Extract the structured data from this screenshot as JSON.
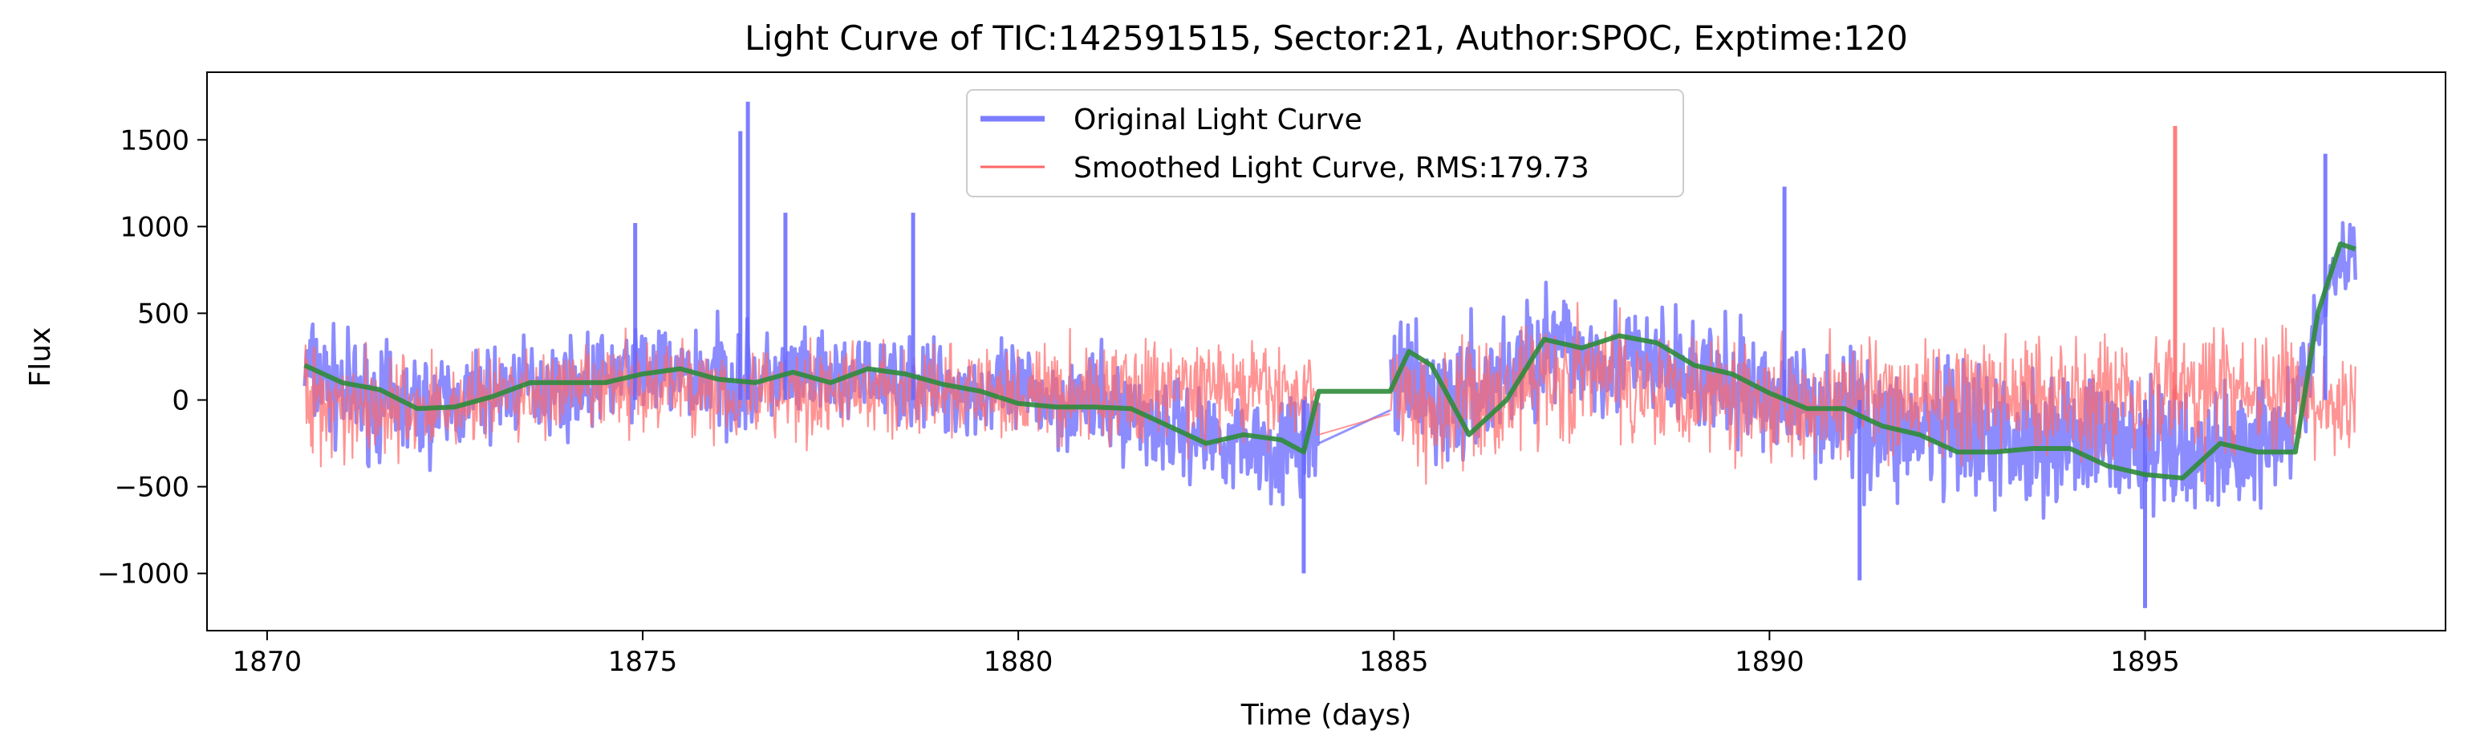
{
  "chart_data": {
    "type": "line",
    "title": "Light Curve of TIC:142591515, Sector:21, Author:SPOC, Exptime:120",
    "xlabel": "Time (days)",
    "ylabel": "Flux",
    "xlim": [
      1869.2,
      1899.0
    ],
    "ylim": [
      -1330,
      1890
    ],
    "xticks": [
      1870,
      1875,
      1880,
      1885,
      1890,
      1895
    ],
    "xtick_labels": [
      "1870",
      "1875",
      "1880",
      "1885",
      "1890",
      "1895"
    ],
    "yticks": [
      -1000,
      -500,
      0,
      500,
      1000,
      1500
    ],
    "ytick_labels": [
      "−1000",
      "−500",
      "0",
      "500",
      "1000",
      "1500"
    ],
    "grid": false,
    "legend_position": "top-center",
    "data_gap": [
      1884.0,
      1884.95
    ],
    "series": [
      {
        "name": "Original Light Curve",
        "color": "#6666ff",
        "envelope": {
          "x": [
            1870.5,
            1871.0,
            1871.5,
            1872.0,
            1872.5,
            1873.0,
            1873.5,
            1874.0,
            1874.5,
            1875.0,
            1875.5,
            1876.0,
            1876.5,
            1877.0,
            1877.5,
            1878.0,
            1878.5,
            1879.0,
            1879.5,
            1880.0,
            1880.5,
            1881.0,
            1881.5,
            1882.0,
            1882.5,
            1883.0,
            1883.5,
            1884.0,
            1885.0,
            1885.5,
            1886.0,
            1886.5,
            1887.0,
            1887.5,
            1888.0,
            1888.5,
            1889.0,
            1889.5,
            1890.0,
            1890.5,
            1891.0,
            1891.5,
            1892.0,
            1892.5,
            1893.0,
            1893.5,
            1894.0,
            1894.5,
            1895.0,
            1895.5,
            1896.0,
            1896.5,
            1897.0,
            1897.5,
            1897.8
          ],
          "upper": [
            600,
            450,
            380,
            350,
            330,
            380,
            420,
            400,
            450,
            500,
            480,
            550,
            450,
            450,
            420,
            430,
            400,
            400,
            350,
            380,
            350,
            340,
            300,
            200,
            150,
            120,
            100,
            200,
            500,
            450,
            520,
            600,
            780,
            700,
            650,
            620,
            560,
            480,
            450,
            420,
            380,
            350,
            320,
            300,
            280,
            300,
            250,
            250,
            220,
            200,
            180,
            200,
            350,
            1000,
            1150
          ],
          "lower": [
            -250,
            -350,
            -400,
            -450,
            -380,
            -300,
            -250,
            -250,
            -200,
            -150,
            -200,
            -280,
            -250,
            -200,
            -200,
            -180,
            -220,
            -250,
            -280,
            -300,
            -350,
            -350,
            -450,
            -500,
            -550,
            -600,
            -650,
            -600,
            -250,
            -500,
            -500,
            -300,
            -200,
            -150,
            -200,
            -250,
            -300,
            -350,
            -400,
            -450,
            -500,
            -650,
            -700,
            -750,
            -750,
            -700,
            -650,
            -700,
            -800,
            -800,
            -780,
            -650,
            -500,
            450,
            550
          ]
        }
      },
      {
        "name": "Smoothed Light Curve, RMS:179.73",
        "color": "#ff6666",
        "envelope": {
          "x": [
            1870.5,
            1871.0,
            1871.5,
            1872.0,
            1872.5,
            1873.0,
            1873.5,
            1874.0,
            1874.5,
            1875.0,
            1875.5,
            1876.0,
            1876.5,
            1877.0,
            1877.5,
            1878.0,
            1878.5,
            1879.0,
            1879.5,
            1880.0,
            1880.5,
            1881.0,
            1881.5,
            1882.0,
            1882.5,
            1883.0,
            1883.5,
            1884.0,
            1885.0,
            1885.5,
            1886.0,
            1886.5,
            1887.0,
            1887.5,
            1888.0,
            1888.5,
            1889.0,
            1889.5,
            1890.0,
            1890.5,
            1891.0,
            1891.5,
            1892.0,
            1892.5,
            1893.0,
            1893.5,
            1894.0,
            1894.5,
            1895.0,
            1895.5,
            1896.0,
            1896.5,
            1897.0,
            1897.5,
            1897.8
          ],
          "upper": [
            500,
            400,
            350,
            330,
            320,
            360,
            380,
            380,
            400,
            430,
            420,
            450,
            400,
            400,
            380,
            390,
            380,
            380,
            360,
            390,
            400,
            420,
            430,
            450,
            420,
            400,
            380,
            350,
            450,
            420,
            470,
            520,
            600,
            580,
            550,
            540,
            520,
            480,
            450,
            440,
            420,
            420,
            430,
            450,
            480,
            500,
            480,
            500,
            520,
            560,
            550,
            500,
            450,
            250,
            300
          ],
          "lower": [
            -400,
            -420,
            -420,
            -430,
            -380,
            -320,
            -300,
            -300,
            -270,
            -250,
            -270,
            -330,
            -320,
            -280,
            -280,
            -250,
            -280,
            -300,
            -320,
            -330,
            -340,
            -340,
            -350,
            -330,
            -300,
            -300,
            -300,
            -300,
            -300,
            -550,
            -550,
            -400,
            -350,
            -300,
            -320,
            -350,
            -380,
            -400,
            -420,
            -430,
            -440,
            -460,
            -450,
            -460,
            -450,
            -420,
            -400,
            -420,
            -450,
            -460,
            -450,
            -400,
            -380,
            -350,
            -350
          ]
        }
      },
      {
        "name": "",
        "color": "#2e8b3a",
        "x": [
          1870.5,
          1871.0,
          1871.5,
          1872.0,
          1872.5,
          1873.0,
          1873.5,
          1874.0,
          1874.5,
          1875.0,
          1875.5,
          1876.0,
          1876.5,
          1877.0,
          1877.5,
          1878.0,
          1878.5,
          1879.0,
          1879.5,
          1880.0,
          1880.5,
          1881.0,
          1881.5,
          1882.0,
          1882.5,
          1883.0,
          1883.5,
          1883.8,
          1884.0,
          1884.95,
          1885.2,
          1885.5,
          1886.0,
          1886.5,
          1887.0,
          1887.5,
          1888.0,
          1888.5,
          1889.0,
          1889.5,
          1890.0,
          1890.5,
          1891.0,
          1891.5,
          1892.0,
          1892.5,
          1893.0,
          1893.5,
          1894.0,
          1894.5,
          1895.0,
          1895.5,
          1896.0,
          1896.5,
          1897.0,
          1897.3,
          1897.6,
          1897.8
        ],
        "y": [
          200,
          100,
          60,
          -50,
          -40,
          20,
          100,
          100,
          100,
          150,
          180,
          120,
          100,
          160,
          100,
          180,
          150,
          90,
          50,
          -20,
          -40,
          -40,
          -50,
          -150,
          -250,
          -200,
          -230,
          -300,
          50,
          50,
          280,
          200,
          -200,
          0,
          350,
          300,
          370,
          330,
          200,
          150,
          40,
          -50,
          -50,
          -150,
          -200,
          -300,
          -300,
          -280,
          -280,
          -380,
          -430,
          -450,
          -250,
          -300,
          -300,
          500,
          900,
          870
        ]
      }
    ],
    "spikes": [
      {
        "x": 1876.3,
        "y": 1550,
        "series": "Original Light Curve"
      },
      {
        "x": 1876.4,
        "y": 1720,
        "series": "Original Light Curve"
      },
      {
        "x": 1874.9,
        "y": 1020,
        "series": "Original Light Curve"
      },
      {
        "x": 1876.9,
        "y": 1080,
        "series": "Original Light Curve"
      },
      {
        "x": 1878.6,
        "y": 1080,
        "series": "Original Light Curve"
      },
      {
        "x": 1883.8,
        "y": -1000,
        "series": "Original Light Curve"
      },
      {
        "x": 1895.4,
        "y": 1580,
        "series": "Smoothed Light Curve, RMS:179.73"
      },
      {
        "x": 1895.0,
        "y": -1200,
        "series": "Original Light Curve"
      },
      {
        "x": 1891.2,
        "y": -1040,
        "series": "Original Light Curve"
      },
      {
        "x": 1890.2,
        "y": 1230,
        "series": "Original Light Curve"
      },
      {
        "x": 1897.4,
        "y": 1420,
        "series": "Original Light Curve"
      }
    ]
  }
}
